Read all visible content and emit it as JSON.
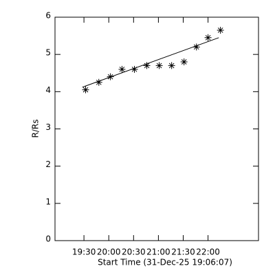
{
  "chart_data": {
    "type": "scatter",
    "xlabel": "Start Time (31-Dec-25 19:06:07)",
    "ylabel": "R/Rs",
    "xlim": [
      1135,
      1381
    ],
    "ylim": [
      0,
      6
    ],
    "xticks": [
      {
        "value": 1170,
        "label": "19:30"
      },
      {
        "value": 1200,
        "label": "20:00"
      },
      {
        "value": 1230,
        "label": "20:30"
      },
      {
        "value": 1260,
        "label": "21:00"
      },
      {
        "value": 1290,
        "label": "21:30"
      },
      {
        "value": 1320,
        "label": "22:00"
      }
    ],
    "yticks": [
      0,
      1,
      2,
      3,
      4,
      5,
      6
    ],
    "series": [
      {
        "name": "data",
        "color": "#000000",
        "marker": "asterisk",
        "x": [
          1172,
          1188,
          1202,
          1216,
          1231,
          1246,
          1261,
          1276,
          1291,
          1306,
          1320,
          1335
        ],
        "values": [
          4.05,
          4.25,
          4.4,
          4.6,
          4.6,
          4.7,
          4.7,
          4.7,
          4.8,
          5.2,
          5.45,
          5.65
        ]
      },
      {
        "name": "fit",
        "color": "#000000",
        "marker": "line",
        "x": [
          1168,
          1333
        ],
        "values": [
          4.12,
          5.45
        ]
      }
    ]
  }
}
